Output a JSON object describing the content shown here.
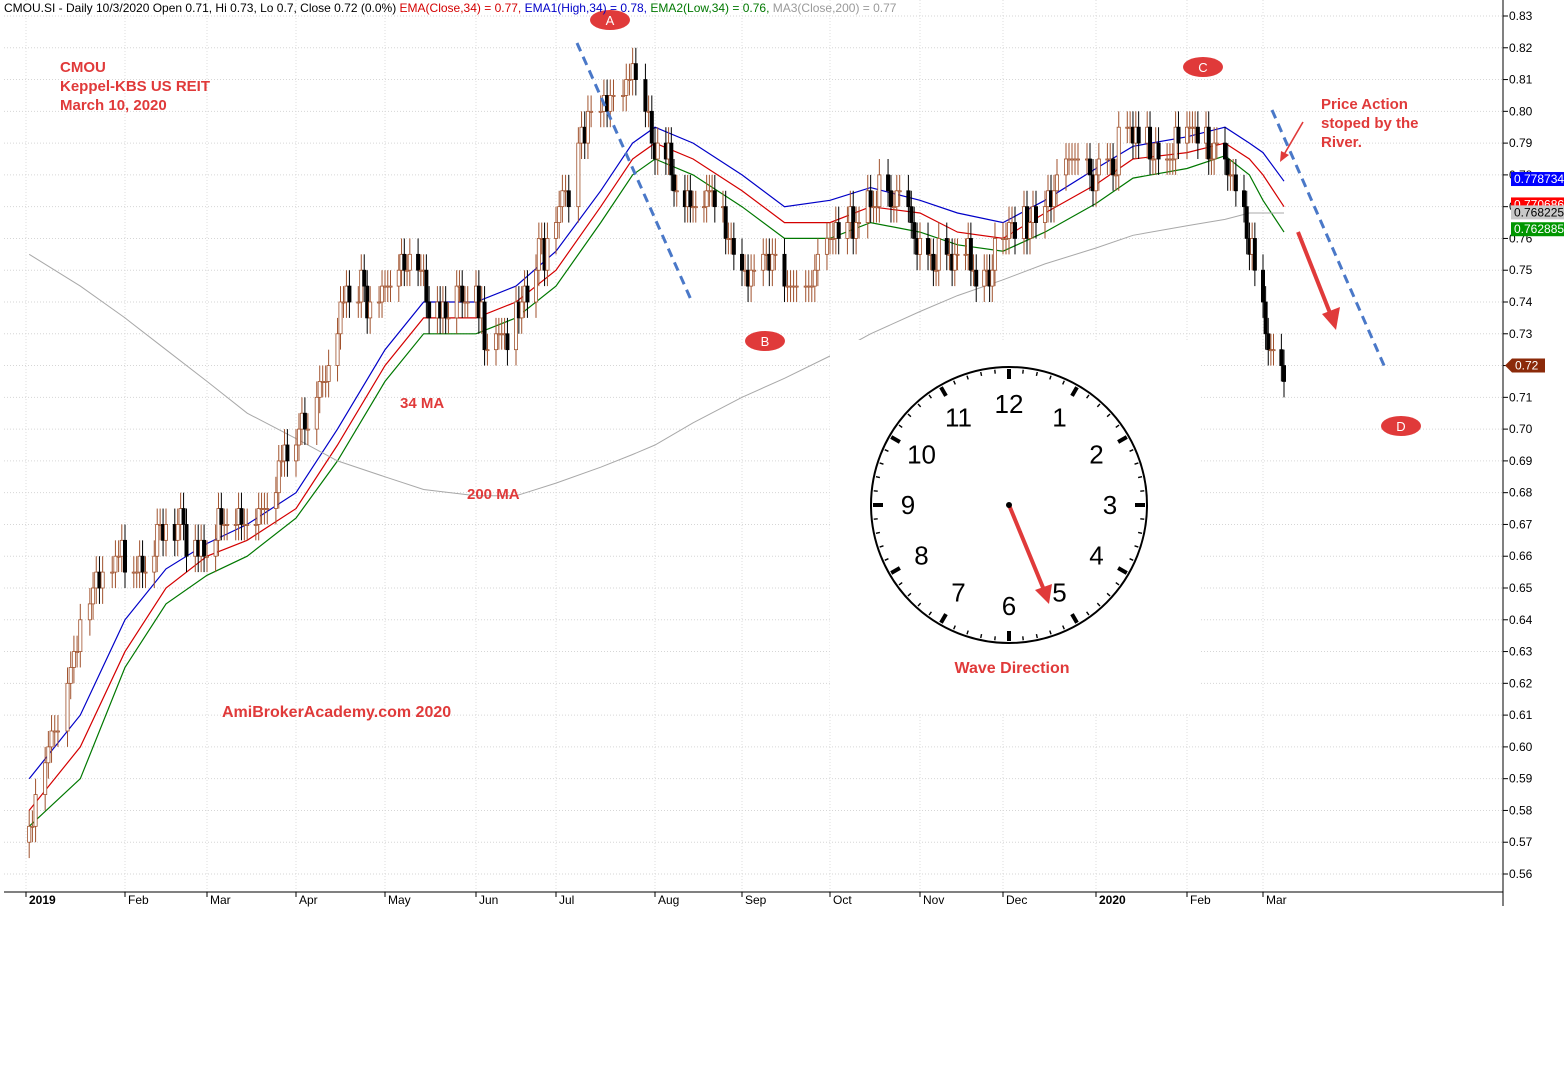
{
  "header": {
    "segments": [
      {
        "text": "CMOU.SI - Daily 10/3/2020 Open 0.71, Hi 0.73, Lo 0.7, Close 0.72 (0.0%) ",
        "color": "#000000"
      },
      {
        "text": "EMA(Close,34) = 0.77, ",
        "color": "#d40000"
      },
      {
        "text": "EMA1(High,34) = 0.78, ",
        "color": "#0000c8"
      },
      {
        "text": "EMA2(Low,34) = 0.76, ",
        "color": "#007800"
      },
      {
        "text": "MA3(Close,200) = 0.77",
        "color": "#9a9a9a"
      }
    ]
  },
  "annotations": {
    "title_lines": [
      "CMOU",
      "Keppel-KBS US REIT",
      "March 10, 2020"
    ],
    "label_34ma": "34 MA",
    "label_200ma": "200 MA",
    "watermark": "AmiBrokerAcademy.com  2020",
    "price_action_lines": [
      "Price Action",
      "stoped by the",
      "River."
    ],
    "wave_direction": "Wave Direction",
    "wave_points": {
      "A": "A",
      "B": "B",
      "C": "C",
      "D": "D"
    },
    "clock_numbers": [
      "12",
      "1",
      "2",
      "3",
      "4",
      "5",
      "6",
      "7",
      "8",
      "9",
      "10",
      "11"
    ]
  },
  "price_tags": [
    {
      "text": "0.778734",
      "bg": "#0000ff",
      "fg": "#ffffff"
    },
    {
      "text": "0.770686",
      "bg": "#ff0000",
      "fg": "#ffffff"
    },
    {
      "text": "0.768225",
      "bg": "#c8c8c8",
      "fg": "#000000"
    },
    {
      "text": "0.762885",
      "bg": "#009600",
      "fg": "#ffffff"
    },
    {
      "text": "0.72",
      "bg": "#8b2a0a",
      "fg": "#ffffff"
    }
  ],
  "colors": {
    "ema_close": "#d40000",
    "ema_high": "#0000c8",
    "ema_low": "#007800",
    "ma200": "#a8a8a8",
    "annotation_red": "#e03a3a",
    "trend_dash": "#4a78c8",
    "up_candle": "#a0522d",
    "down_candle": "#000000"
  },
  "chart_data": {
    "type": "line",
    "title": "CMOU.SI - Daily",
    "xlabel": "",
    "ylabel": "",
    "ylim": [
      0.555,
      0.835
    ],
    "yticks": [
      0.56,
      0.57,
      0.58,
      0.59,
      0.6,
      0.61,
      0.62,
      0.63,
      0.64,
      0.65,
      0.66,
      0.67,
      0.68,
      0.69,
      0.7,
      0.71,
      0.72,
      0.73,
      0.74,
      0.75,
      0.76,
      0.77,
      0.78,
      0.79,
      0.8,
      0.81,
      0.82,
      0.83
    ],
    "month_labels": [
      "2019",
      "Feb",
      "Mar",
      "Apr",
      "May",
      "Jun",
      "Jul",
      "Aug",
      "Sep",
      "Oct",
      "Nov",
      "Dec",
      "2020",
      "Feb",
      "Mar"
    ],
    "bold_labels": [
      "2019",
      "2020"
    ],
    "x": [
      "2019-01-02",
      "2019-01-18",
      "2019-02-01",
      "2019-02-15",
      "2019-03-01",
      "2019-03-15",
      "2019-04-01",
      "2019-04-15",
      "2019-05-01",
      "2019-05-15",
      "2019-06-03",
      "2019-06-17",
      "2019-07-01",
      "2019-07-15",
      "2019-07-25",
      "2019-08-01",
      "2019-08-15",
      "2019-09-02",
      "2019-09-16",
      "2019-10-01",
      "2019-10-15",
      "2019-11-01",
      "2019-11-15",
      "2019-12-02",
      "2019-12-16",
      "2020-01-02",
      "2020-01-15",
      "2020-02-03",
      "2020-02-17",
      "2020-02-26",
      "2020-03-02",
      "2020-03-10"
    ],
    "series": [
      {
        "name": "Close",
        "values": [
          0.57,
          0.64,
          0.66,
          0.665,
          0.665,
          0.672,
          0.695,
          0.735,
          0.75,
          0.745,
          0.735,
          0.73,
          0.77,
          0.8,
          0.815,
          0.785,
          0.775,
          0.755,
          0.745,
          0.755,
          0.775,
          0.76,
          0.75,
          0.755,
          0.775,
          0.785,
          0.79,
          0.79,
          0.79,
          0.755,
          0.735,
          0.72
        ]
      },
      {
        "name": "EMA(Close,34)",
        "values": [
          0.58,
          0.6,
          0.63,
          0.65,
          0.66,
          0.665,
          0.675,
          0.695,
          0.72,
          0.735,
          0.735,
          0.74,
          0.75,
          0.77,
          0.785,
          0.79,
          0.785,
          0.775,
          0.765,
          0.765,
          0.77,
          0.768,
          0.762,
          0.76,
          0.768,
          0.777,
          0.785,
          0.787,
          0.79,
          0.785,
          0.78,
          0.77
        ]
      },
      {
        "name": "EMA1(High,34)",
        "values": [
          0.59,
          0.61,
          0.64,
          0.656,
          0.664,
          0.67,
          0.68,
          0.7,
          0.725,
          0.74,
          0.74,
          0.745,
          0.756,
          0.775,
          0.79,
          0.795,
          0.79,
          0.78,
          0.77,
          0.772,
          0.776,
          0.772,
          0.768,
          0.765,
          0.772,
          0.782,
          0.789,
          0.792,
          0.795,
          0.79,
          0.787,
          0.778
        ]
      },
      {
        "name": "EMA2(Low,34)",
        "values": [
          0.575,
          0.59,
          0.625,
          0.645,
          0.654,
          0.66,
          0.672,
          0.69,
          0.715,
          0.73,
          0.73,
          0.735,
          0.745,
          0.765,
          0.78,
          0.785,
          0.78,
          0.77,
          0.76,
          0.76,
          0.765,
          0.762,
          0.758,
          0.756,
          0.762,
          0.771,
          0.779,
          0.782,
          0.786,
          0.78,
          0.772,
          0.762
        ]
      },
      {
        "name": "MA3(Close,200)",
        "values": [
          0.755,
          0.745,
          0.735,
          0.725,
          0.715,
          0.705,
          0.697,
          0.69,
          0.685,
          0.681,
          0.679,
          0.679,
          0.683,
          0.688,
          0.692,
          0.695,
          0.702,
          0.71,
          0.716,
          0.723,
          0.73,
          0.737,
          0.742,
          0.747,
          0.752,
          0.757,
          0.761,
          0.764,
          0.766,
          0.768,
          0.768,
          0.768
        ]
      }
    ],
    "grid": true,
    "legend": "none"
  }
}
